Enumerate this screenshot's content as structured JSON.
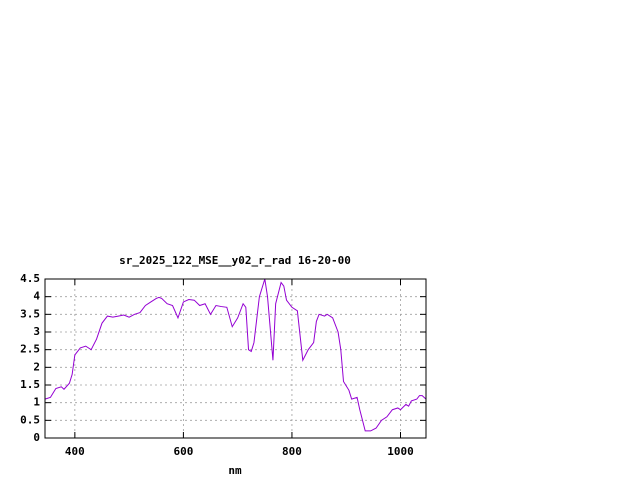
{
  "chart_data": {
    "type": "line",
    "title": "sr_2025_122_MSE__y02_r_rad 16-20-00",
    "xlabel": "nm",
    "xlim": [
      345,
      1047
    ],
    "xticks": [
      400,
      600,
      800,
      1000
    ],
    "ylim": [
      0,
      4.5
    ],
    "yticks": [
      0,
      0.5,
      1,
      1.5,
      2,
      2.5,
      3,
      3.5,
      4,
      4.5
    ],
    "grid": true,
    "x": [
      345,
      355,
      365,
      375,
      380,
      390,
      395,
      400,
      410,
      420,
      430,
      440,
      450,
      460,
      470,
      480,
      490,
      500,
      510,
      520,
      530,
      540,
      550,
      555,
      560,
      570,
      580,
      590,
      600,
      610,
      620,
      630,
      640,
      650,
      660,
      670,
      680,
      690,
      700,
      710,
      715,
      720,
      725,
      730,
      740,
      750,
      755,
      765,
      770,
      780,
      785,
      790,
      800,
      810,
      820,
      830,
      840,
      845,
      850,
      860,
      865,
      875,
      885,
      890,
      895,
      905,
      910,
      920,
      925,
      935,
      945,
      955,
      965,
      975,
      985,
      995,
      1000,
      1010,
      1015,
      1020,
      1030,
      1035,
      1040,
      1047
    ],
    "series": [
      {
        "color": "#9400d3",
        "values": [
          1.1,
          1.15,
          1.4,
          1.45,
          1.38,
          1.55,
          1.8,
          2.35,
          2.55,
          2.6,
          2.5,
          2.8,
          3.25,
          3.45,
          3.42,
          3.45,
          3.48,
          3.42,
          3.5,
          3.55,
          3.75,
          3.85,
          3.95,
          3.98,
          3.95,
          3.8,
          3.75,
          3.4,
          3.85,
          3.92,
          3.9,
          3.75,
          3.8,
          3.5,
          3.75,
          3.72,
          3.7,
          3.15,
          3.4,
          3.8,
          3.7,
          2.5,
          2.45,
          2.7,
          4.0,
          4.5,
          4.0,
          2.2,
          3.8,
          4.4,
          4.3,
          3.9,
          3.7,
          3.6,
          2.2,
          2.5,
          2.7,
          3.3,
          3.5,
          3.45,
          3.5,
          3.4,
          3.0,
          2.5,
          1.6,
          1.35,
          1.1,
          1.15,
          0.8,
          0.2,
          0.2,
          0.28,
          0.5,
          0.6,
          0.8,
          0.85,
          0.8,
          0.95,
          0.9,
          1.05,
          1.1,
          1.2,
          1.2,
          1.1
        ]
      }
    ]
  }
}
